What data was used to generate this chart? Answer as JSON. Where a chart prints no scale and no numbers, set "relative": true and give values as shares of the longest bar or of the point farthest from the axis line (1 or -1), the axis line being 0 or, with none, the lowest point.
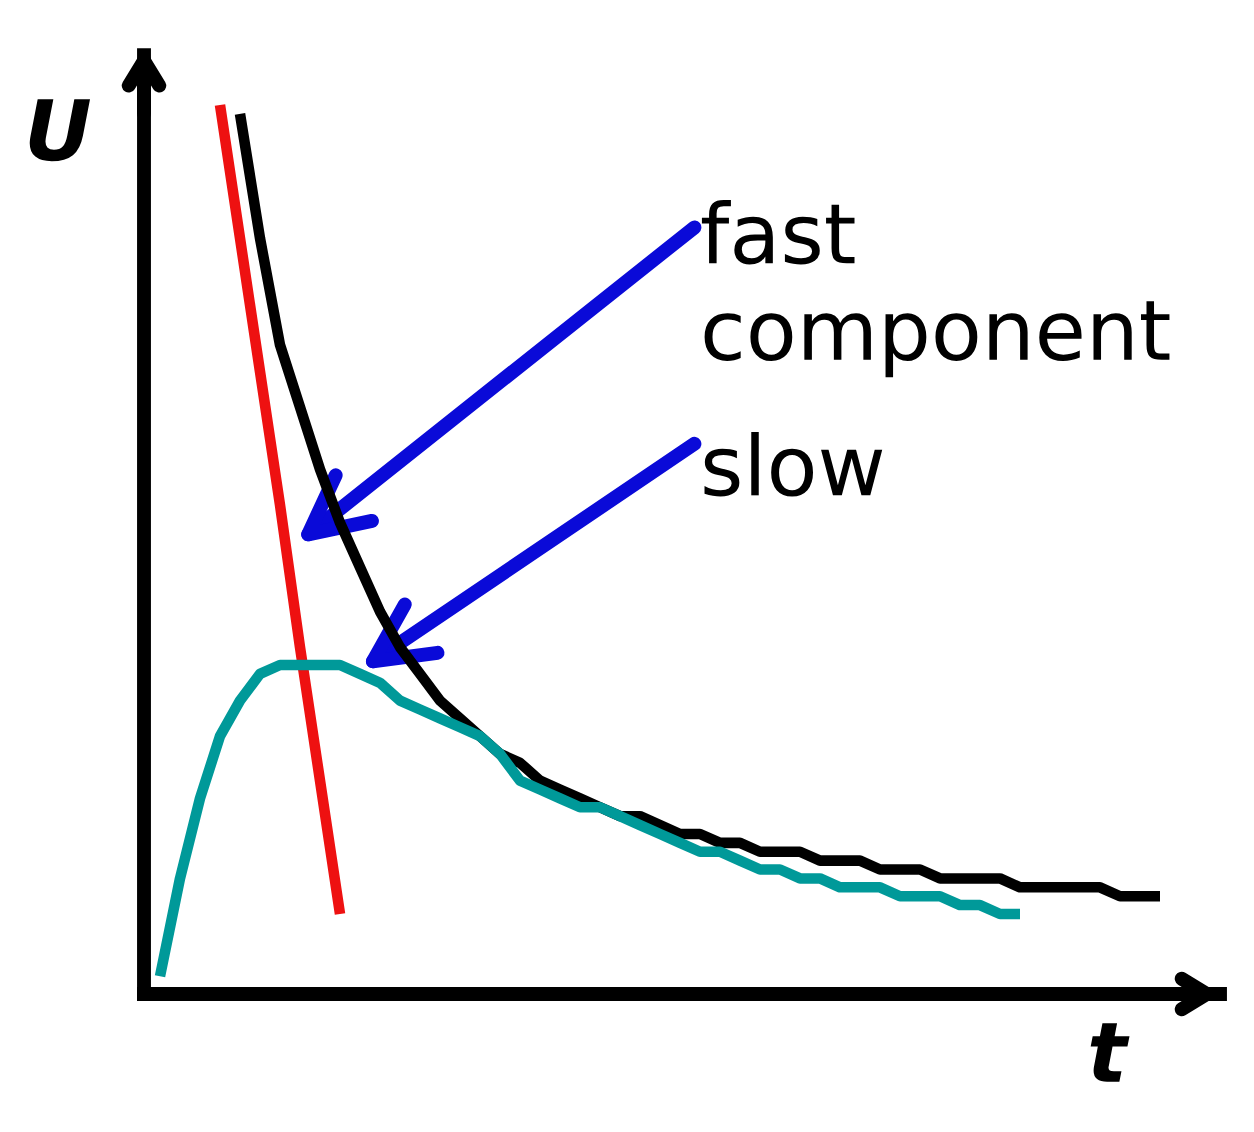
{
  "chart_data": {
    "type": "line",
    "relative": true,
    "xlabel": "t",
    "ylabel": "U",
    "tick_labels": false,
    "marker": "none",
    "line_style": "solid",
    "categories": [
      null,
      null,
      null,
      null,
      null,
      null,
      null,
      null,
      null,
      null,
      null,
      null,
      null,
      null,
      null,
      null,
      null,
      null,
      null,
      null,
      null,
      null,
      null,
      null,
      null,
      null,
      null,
      null,
      null,
      null,
      null,
      null,
      null,
      null,
      null,
      null,
      null,
      null,
      null,
      null,
      null,
      null,
      null,
      null,
      null,
      null,
      null,
      null,
      null,
      null,
      null
    ],
    "series": [
      {
        "color": "#000000",
        "values": [
          null,
          null,
          null,
          null,
          0.99,
          0.85,
          0.73,
          0.66,
          0.59,
          0.53,
          0.48,
          0.43,
          0.39,
          0.36,
          0.33,
          0.31,
          0.29,
          0.27,
          0.26,
          0.24,
          0.23,
          0.22,
          0.21,
          0.2,
          0.2,
          0.19,
          0.18,
          0.18,
          0.17,
          0.17,
          0.16,
          0.16,
          0.16,
          0.15,
          0.15,
          0.15,
          0.14,
          0.14,
          0.14,
          0.13,
          0.13,
          0.13,
          0.13,
          0.12,
          0.12,
          0.12,
          0.12,
          0.12,
          0.11,
          0.11,
          0.11
        ]
      },
      {
        "color": "#ee1111",
        "values": [
          null,
          null,
          null,
          1.0,
          0.85,
          0.7,
          0.55,
          0.39,
          0.24,
          0.09,
          null,
          null,
          null,
          null,
          null,
          null,
          null,
          null,
          null,
          null,
          null,
          null,
          null,
          null,
          null,
          null,
          null,
          null,
          null,
          null,
          null,
          null,
          null,
          null,
          null,
          null,
          null,
          null,
          null,
          null,
          null,
          null,
          null,
          null,
          null,
          null,
          null,
          null,
          null,
          null,
          null
        ]
      },
      {
        "color": "#009999",
        "values": [
          0.02,
          0.13,
          0.22,
          0.29,
          0.33,
          0.36,
          0.37,
          0.37,
          0.37,
          0.37,
          0.36,
          0.35,
          0.33,
          0.32,
          0.31,
          0.3,
          0.29,
          0.27,
          0.24,
          0.23,
          0.22,
          0.21,
          0.21,
          0.2,
          0.19,
          0.18,
          0.17,
          0.16,
          0.16,
          0.15,
          0.14,
          0.14,
          0.13,
          0.13,
          0.12,
          0.12,
          0.12,
          0.11,
          0.11,
          0.11,
          0.1,
          0.1,
          0.09,
          0.09,
          null,
          null,
          null,
          null,
          null,
          null,
          null
        ]
      }
    ],
    "annotations": [
      "fast\ncomponent",
      "slow"
    ]
  }
}
